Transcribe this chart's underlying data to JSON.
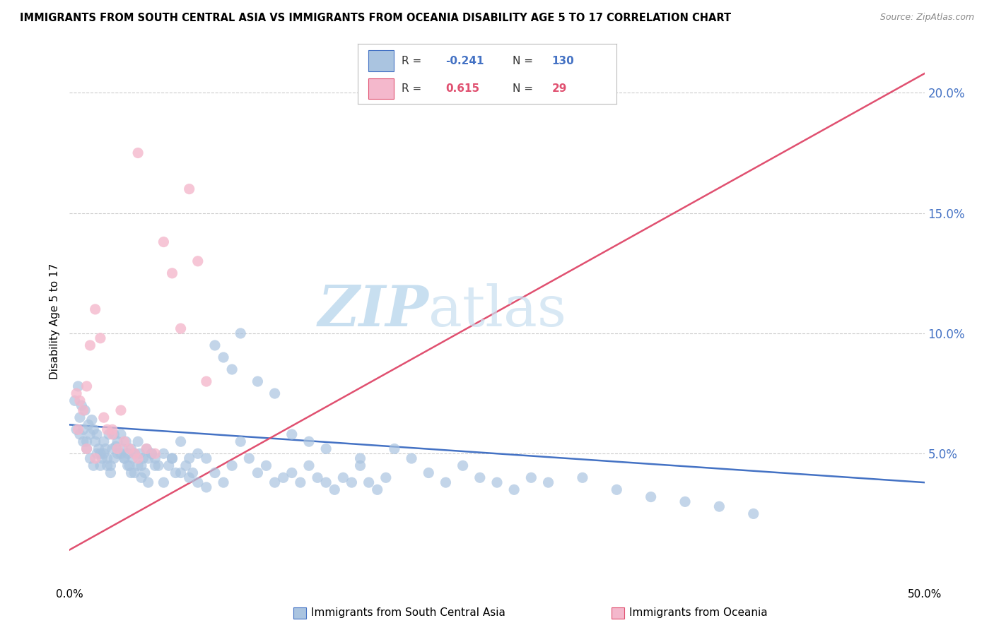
{
  "title": "IMMIGRANTS FROM SOUTH CENTRAL ASIA VS IMMIGRANTS FROM OCEANIA DISABILITY AGE 5 TO 17 CORRELATION CHART",
  "source": "Source: ZipAtlas.com",
  "ylabel": "Disability Age 5 to 17",
  "legend_label1": "Immigrants from South Central Asia",
  "legend_label2": "Immigrants from Oceania",
  "R1": -0.241,
  "N1": 130,
  "R2": 0.615,
  "N2": 29,
  "color1": "#aac4e0",
  "color2": "#f4b8cc",
  "trendline1_color": "#4472c4",
  "trendline2_color": "#e05070",
  "xlim": [
    0.0,
    0.5
  ],
  "ylim": [
    -0.005,
    0.215
  ],
  "yticks": [
    0.05,
    0.1,
    0.15,
    0.2
  ],
  "ytick_labels": [
    "5.0%",
    "10.0%",
    "15.0%",
    "20.0%"
  ],
  "background_color": "#ffffff",
  "grid_color": "#cccccc",
  "watermark_color": "#c8dff0",
  "blue_scatter_x": [
    0.003,
    0.005,
    0.006,
    0.007,
    0.008,
    0.009,
    0.01,
    0.011,
    0.012,
    0.013,
    0.014,
    0.015,
    0.016,
    0.017,
    0.018,
    0.019,
    0.02,
    0.021,
    0.022,
    0.023,
    0.024,
    0.025,
    0.026,
    0.027,
    0.028,
    0.03,
    0.031,
    0.032,
    0.033,
    0.034,
    0.035,
    0.036,
    0.037,
    0.038,
    0.04,
    0.041,
    0.042,
    0.043,
    0.045,
    0.046,
    0.048,
    0.05,
    0.052,
    0.055,
    0.058,
    0.06,
    0.062,
    0.065,
    0.068,
    0.07,
    0.072,
    0.075,
    0.08,
    0.085,
    0.09,
    0.095,
    0.1,
    0.105,
    0.11,
    0.115,
    0.12,
    0.125,
    0.13,
    0.135,
    0.14,
    0.145,
    0.15,
    0.155,
    0.16,
    0.165,
    0.17,
    0.175,
    0.18,
    0.185,
    0.19,
    0.2,
    0.21,
    0.22,
    0.23,
    0.24,
    0.25,
    0.26,
    0.27,
    0.28,
    0.3,
    0.32,
    0.34,
    0.36,
    0.38,
    0.4,
    0.004,
    0.006,
    0.008,
    0.01,
    0.012,
    0.014,
    0.016,
    0.018,
    0.02,
    0.022,
    0.024,
    0.026,
    0.028,
    0.03,
    0.032,
    0.034,
    0.036,
    0.038,
    0.04,
    0.042,
    0.044,
    0.046,
    0.048,
    0.05,
    0.055,
    0.06,
    0.065,
    0.07,
    0.075,
    0.08,
    0.085,
    0.09,
    0.095,
    0.1,
    0.11,
    0.12,
    0.13,
    0.14,
    0.15,
    0.17
  ],
  "blue_scatter_y": [
    0.072,
    0.078,
    0.065,
    0.07,
    0.06,
    0.068,
    0.055,
    0.062,
    0.058,
    0.064,
    0.06,
    0.055,
    0.058,
    0.052,
    0.05,
    0.048,
    0.055,
    0.052,
    0.048,
    0.058,
    0.045,
    0.052,
    0.048,
    0.053,
    0.05,
    0.058,
    0.052,
    0.048,
    0.055,
    0.05,
    0.045,
    0.052,
    0.048,
    0.042,
    0.055,
    0.05,
    0.045,
    0.048,
    0.052,
    0.048,
    0.05,
    0.048,
    0.045,
    0.05,
    0.045,
    0.048,
    0.042,
    0.055,
    0.045,
    0.048,
    0.042,
    0.05,
    0.048,
    0.042,
    0.038,
    0.045,
    0.055,
    0.048,
    0.042,
    0.045,
    0.038,
    0.04,
    0.042,
    0.038,
    0.045,
    0.04,
    0.038,
    0.035,
    0.04,
    0.038,
    0.045,
    0.038,
    0.035,
    0.04,
    0.052,
    0.048,
    0.042,
    0.038,
    0.045,
    0.04,
    0.038,
    0.035,
    0.04,
    0.038,
    0.04,
    0.035,
    0.032,
    0.03,
    0.028,
    0.025,
    0.06,
    0.058,
    0.055,
    0.052,
    0.048,
    0.045,
    0.05,
    0.045,
    0.05,
    0.045,
    0.042,
    0.058,
    0.055,
    0.05,
    0.048,
    0.045,
    0.042,
    0.05,
    0.045,
    0.04,
    0.042,
    0.038,
    0.05,
    0.045,
    0.038,
    0.048,
    0.042,
    0.04,
    0.038,
    0.036,
    0.095,
    0.09,
    0.085,
    0.1,
    0.08,
    0.075,
    0.058,
    0.055,
    0.052,
    0.048
  ],
  "pink_scatter_x": [
    0.004,
    0.006,
    0.008,
    0.01,
    0.012,
    0.015,
    0.018,
    0.02,
    0.022,
    0.025,
    0.028,
    0.03,
    0.032,
    0.035,
    0.038,
    0.04,
    0.045,
    0.05,
    0.055,
    0.06,
    0.065,
    0.07,
    0.075,
    0.08,
    0.005,
    0.01,
    0.015,
    0.025,
    0.04
  ],
  "pink_scatter_y": [
    0.075,
    0.072,
    0.068,
    0.078,
    0.095,
    0.11,
    0.098,
    0.065,
    0.06,
    0.058,
    0.052,
    0.068,
    0.055,
    0.052,
    0.05,
    0.175,
    0.052,
    0.05,
    0.138,
    0.125,
    0.102,
    0.16,
    0.13,
    0.08,
    0.06,
    0.052,
    0.048,
    0.06,
    0.048
  ],
  "trendline1_x0": 0.0,
  "trendline1_x1": 0.5,
  "trendline1_y0": 0.062,
  "trendline1_y1": 0.038,
  "trendline2_x0": 0.0,
  "trendline2_x1": 0.5,
  "trendline2_y0": 0.01,
  "trendline2_y1": 0.208
}
